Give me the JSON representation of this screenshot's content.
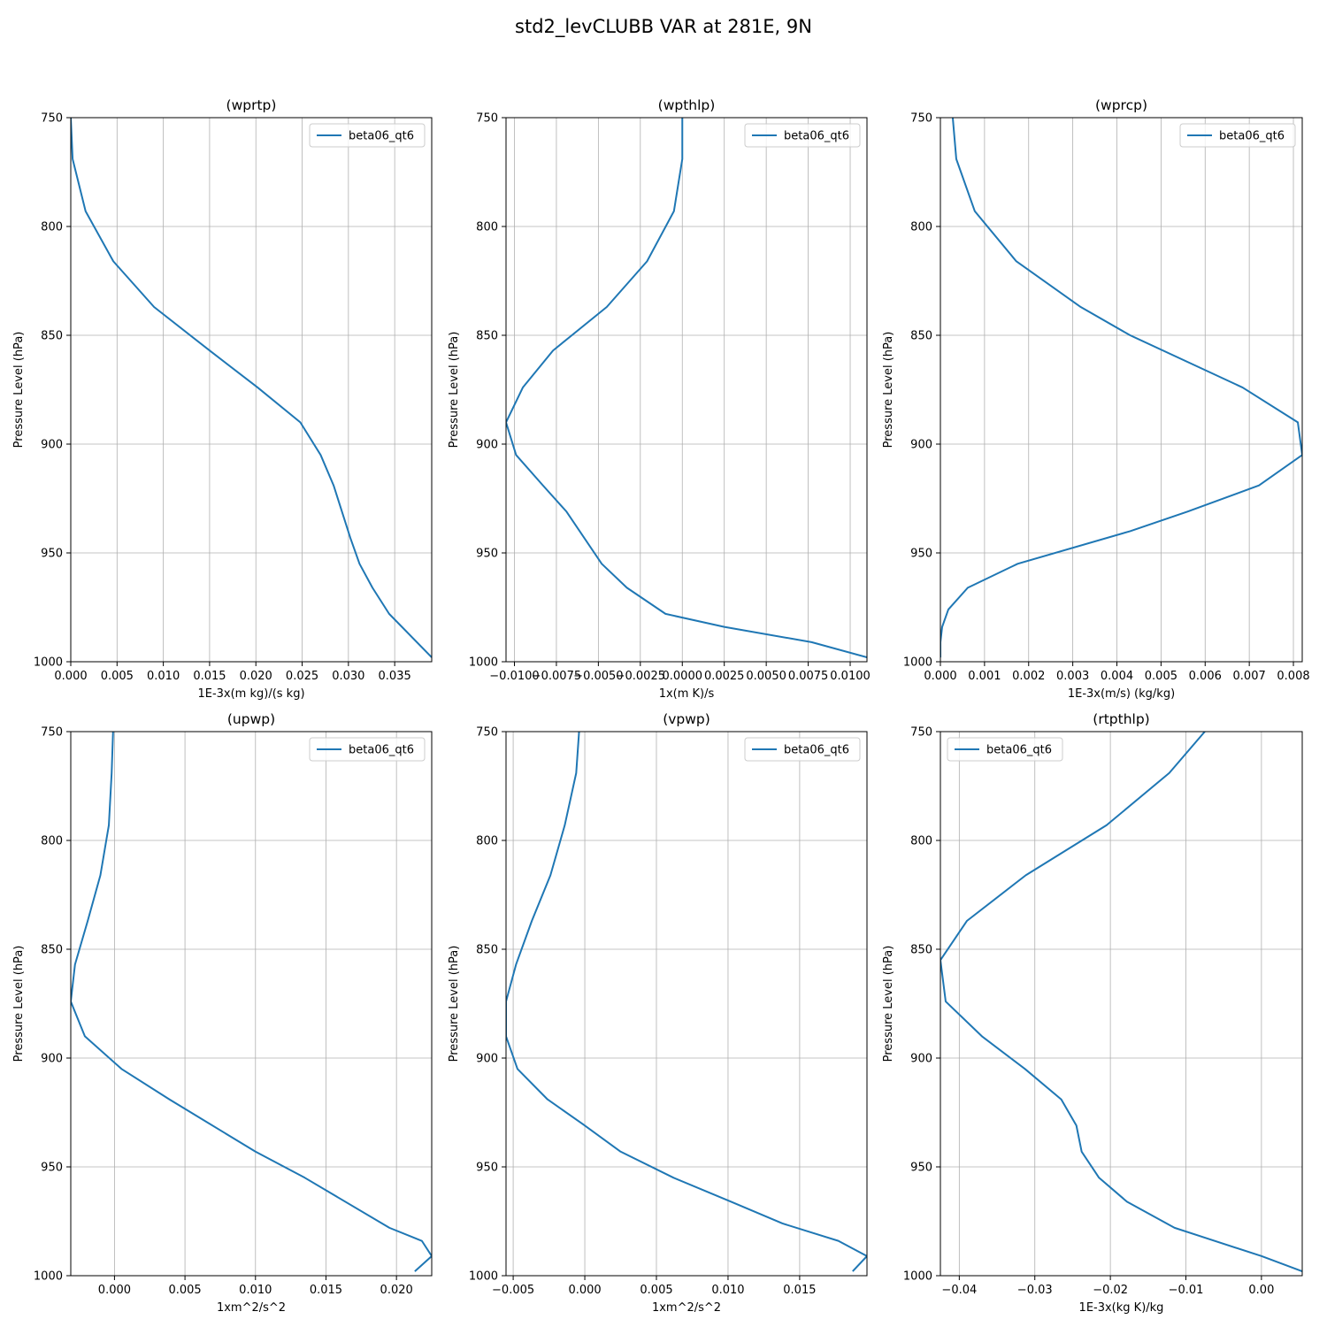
{
  "figure": {
    "title": "std2_levCLUBB VAR at 281E, 9N",
    "line_color": "#1f77b4"
  },
  "chart_data": [
    {
      "type": "line",
      "title": "(wprtp)",
      "xlabel": "1E-3x(m kg)/(s kg)",
      "ylabel": "Pressure Level (hPa)",
      "xlim": [
        0.0,
        0.039
      ],
      "ylim": [
        1000,
        750
      ],
      "yticks": [
        "750",
        "800",
        "850",
        "900",
        "950",
        "1000"
      ],
      "xticks": [
        {
          "v": 0.0,
          "label": "0.000"
        },
        {
          "v": 0.005,
          "label": "0.005"
        },
        {
          "v": 0.01,
          "label": "0.010"
        },
        {
          "v": 0.015,
          "label": "0.015"
        },
        {
          "v": 0.02,
          "label": "0.020"
        },
        {
          "v": 0.025,
          "label": "0.025"
        },
        {
          "v": 0.03,
          "label": "0.030"
        },
        {
          "v": 0.035,
          "label": "0.035"
        }
      ],
      "legend": "upper right",
      "grid": true,
      "series": [
        {
          "name": "beta06_qt6",
          "points": [
            [
              0.0,
              750
            ],
            [
              0.0002,
              769
            ],
            [
              0.0016,
              793
            ],
            [
              0.0046,
              816
            ],
            [
              0.009,
              837
            ],
            [
              0.015,
              857
            ],
            [
              0.0202,
              874
            ],
            [
              0.0248,
              890
            ],
            [
              0.027,
              905
            ],
            [
              0.0284,
              919
            ],
            [
              0.0302,
              943
            ],
            [
              0.0312,
              955
            ],
            [
              0.0326,
              966
            ],
            [
              0.0344,
              978
            ],
            [
              0.039,
              998
            ]
          ]
        }
      ]
    },
    {
      "type": "line",
      "title": "(wpthlp)",
      "xlabel": "1x(m K)/s",
      "ylabel": "Pressure Level (hPa)",
      "xlim": [
        -0.0105,
        0.011
      ],
      "ylim": [
        1000,
        750
      ],
      "yticks": [
        "750",
        "800",
        "850",
        "900",
        "950",
        "1000"
      ],
      "xticks": [
        {
          "v": -0.01,
          "label": "−0.0100"
        },
        {
          "v": -0.0075,
          "label": "−0.0075"
        },
        {
          "v": -0.005,
          "label": "−0.0050"
        },
        {
          "v": -0.0025,
          "label": "−0.0025"
        },
        {
          "v": 0.0,
          "label": "0.0000"
        },
        {
          "v": 0.0025,
          "label": "0.0025"
        },
        {
          "v": 0.005,
          "label": "0.0050"
        },
        {
          "v": 0.0075,
          "label": "0.0075"
        },
        {
          "v": 0.01,
          "label": "0.0100"
        }
      ],
      "legend": "upper right",
      "grid": true,
      "series": [
        {
          "name": "beta06_qt6",
          "points": [
            [
              0.0,
              750
            ],
            [
              0.0,
              769
            ],
            [
              -0.0005,
              793
            ],
            [
              -0.0021,
              816
            ],
            [
              -0.0045,
              837
            ],
            [
              -0.0077,
              857
            ],
            [
              -0.0095,
              874
            ],
            [
              -0.0105,
              890
            ],
            [
              -0.0099,
              905
            ],
            [
              -0.0083,
              919
            ],
            [
              -0.0069,
              931
            ],
            [
              -0.0048,
              955
            ],
            [
              -0.0033,
              966
            ],
            [
              -0.001,
              978
            ],
            [
              0.0025,
              984
            ],
            [
              0.0077,
              991
            ],
            [
              0.011,
              998
            ]
          ]
        }
      ]
    },
    {
      "type": "line",
      "title": "(wprcp)",
      "xlabel": "1E-3x(m/s) (kg/kg)",
      "ylabel": "Pressure Level (hPa)",
      "xlim": [
        0.0,
        0.0082
      ],
      "ylim": [
        1000,
        750
      ],
      "yticks": [
        "750",
        "800",
        "850",
        "900",
        "950",
        "1000"
      ],
      "xticks": [
        {
          "v": 0.0,
          "label": "0.000"
        },
        {
          "v": 0.001,
          "label": "0.001"
        },
        {
          "v": 0.002,
          "label": "0.002"
        },
        {
          "v": 0.003,
          "label": "0.003"
        },
        {
          "v": 0.004,
          "label": "0.004"
        },
        {
          "v": 0.005,
          "label": "0.005"
        },
        {
          "v": 0.006,
          "label": "0.006"
        },
        {
          "v": 0.007,
          "label": "0.007"
        },
        {
          "v": 0.008,
          "label": "0.008"
        }
      ],
      "legend": "upper right",
      "grid": true,
      "series": [
        {
          "name": "beta06_qt6",
          "points": [
            [
              0.00028,
              750
            ],
            [
              0.00036,
              769
            ],
            [
              0.00078,
              793
            ],
            [
              0.00172,
              816
            ],
            [
              0.00318,
              837
            ],
            [
              0.0043,
              850
            ],
            [
              0.00685,
              874
            ],
            [
              0.0081,
              890
            ],
            [
              0.0082,
              905
            ],
            [
              0.00722,
              919
            ],
            [
              0.0056,
              931
            ],
            [
              0.0043,
              940
            ],
            [
              0.00175,
              955
            ],
            [
              0.00062,
              966
            ],
            [
              0.00018,
              976
            ],
            [
              4e-05,
              984
            ],
            [
              0.0,
              991
            ],
            [
              0.0,
              998
            ]
          ]
        }
      ]
    },
    {
      "type": "line",
      "title": "(upwp)",
      "xlabel": "1xm^2/s^2",
      "ylabel": "Pressure Level (hPa)",
      "xlim": [
        -0.0031,
        0.0225
      ],
      "ylim": [
        1000,
        750
      ],
      "yticks": [
        "750",
        "800",
        "850",
        "900",
        "950",
        "1000"
      ],
      "xticks": [
        {
          "v": 0.0,
          "label": "0.000"
        },
        {
          "v": 0.005,
          "label": "0.005"
        },
        {
          "v": 0.01,
          "label": "0.010"
        },
        {
          "v": 0.015,
          "label": "0.015"
        },
        {
          "v": 0.02,
          "label": "0.020"
        }
      ],
      "legend": "upper right",
      "grid": true,
      "series": [
        {
          "name": "beta06_qt6",
          "points": [
            [
              -0.0001,
              750
            ],
            [
              -0.0002,
              769
            ],
            [
              -0.0004,
              793
            ],
            [
              -0.001,
              816
            ],
            [
              -0.0019,
              837
            ],
            [
              -0.0028,
              857
            ],
            [
              -0.0031,
              874
            ],
            [
              -0.0021,
              890
            ],
            [
              0.0005,
              905
            ],
            [
              0.0039,
              919
            ],
            [
              0.01,
              943
            ],
            [
              0.0135,
              955
            ],
            [
              0.0195,
              978
            ],
            [
              0.0218,
              984
            ],
            [
              0.0225,
              991
            ],
            [
              0.0213,
              998
            ]
          ]
        }
      ]
    },
    {
      "type": "line",
      "title": "(vpwp)",
      "xlabel": "1xm^2/s^2",
      "ylabel": "Pressure Level (hPa)",
      "xlim": [
        -0.0055,
        0.0197
      ],
      "ylim": [
        1000,
        750
      ],
      "yticks": [
        "750",
        "800",
        "850",
        "900",
        "950",
        "1000"
      ],
      "xticks": [
        {
          "v": -0.005,
          "label": "−0.005"
        },
        {
          "v": 0.0,
          "label": "0.000"
        },
        {
          "v": 0.005,
          "label": "0.005"
        },
        {
          "v": 0.01,
          "label": "0.010"
        },
        {
          "v": 0.015,
          "label": "0.015"
        }
      ],
      "legend": "upper right",
      "grid": true,
      "series": [
        {
          "name": "beta06_qt6",
          "points": [
            [
              -0.0004,
              750
            ],
            [
              -0.0006,
              769
            ],
            [
              -0.0014,
              793
            ],
            [
              -0.0024,
              816
            ],
            [
              -0.0037,
              837
            ],
            [
              -0.0048,
              857
            ],
            [
              -0.0055,
              874
            ],
            [
              -0.0055,
              890
            ],
            [
              -0.0047,
              905
            ],
            [
              -0.0026,
              919
            ],
            [
              0.0,
              931
            ],
            [
              0.0025,
              943
            ],
            [
              0.0062,
              955
            ],
            [
              0.0102,
              966
            ],
            [
              0.0138,
              976
            ],
            [
              0.0177,
              984
            ],
            [
              0.0197,
              991
            ],
            [
              0.0187,
              998
            ]
          ]
        }
      ]
    },
    {
      "type": "line",
      "title": "(rtpthlp)",
      "xlabel": "1E-3x(kg K)/kg",
      "ylabel": "Pressure Level (hPa)",
      "xlim": [
        -0.0425,
        0.0054
      ],
      "ylim": [
        1000,
        750
      ],
      "yticks": [
        "750",
        "800",
        "850",
        "900",
        "950",
        "1000"
      ],
      "xticks": [
        {
          "v": -0.04,
          "label": "−0.04"
        },
        {
          "v": -0.03,
          "label": "−0.03"
        },
        {
          "v": -0.02,
          "label": "−0.02"
        },
        {
          "v": -0.01,
          "label": "−0.01"
        },
        {
          "v": 0.0,
          "label": "0.00"
        }
      ],
      "legend": "upper left",
      "grid": true,
      "series": [
        {
          "name": "beta06_qt6",
          "points": [
            [
              -0.0075,
              750
            ],
            [
              -0.0122,
              769
            ],
            [
              -0.0205,
              793
            ],
            [
              -0.0312,
              816
            ],
            [
              -0.039,
              837
            ],
            [
              -0.0425,
              855
            ],
            [
              -0.0418,
              874
            ],
            [
              -0.037,
              890
            ],
            [
              -0.0313,
              905
            ],
            [
              -0.0265,
              919
            ],
            [
              -0.0245,
              931
            ],
            [
              -0.0238,
              943
            ],
            [
              -0.0215,
              955
            ],
            [
              -0.0178,
              966
            ],
            [
              -0.0115,
              978
            ],
            [
              0.0,
              991
            ],
            [
              0.0054,
              998
            ]
          ]
        }
      ]
    }
  ]
}
